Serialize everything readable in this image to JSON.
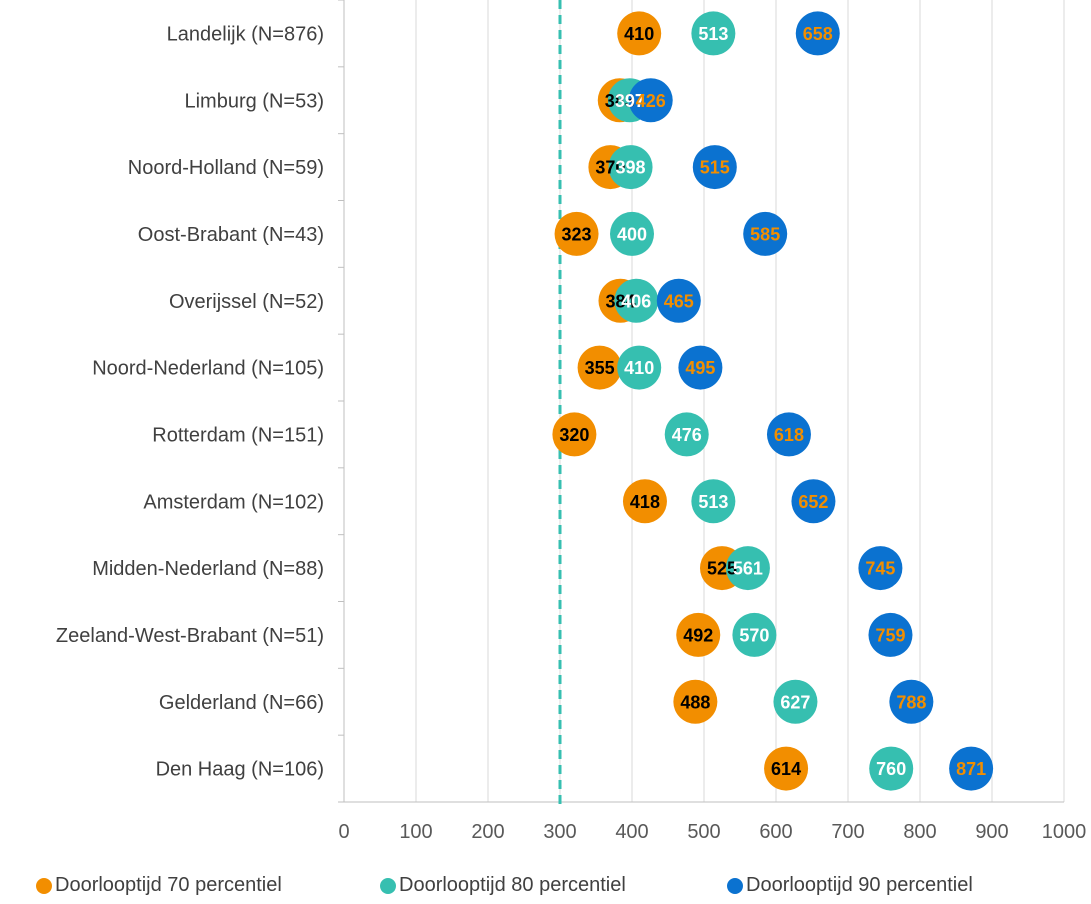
{
  "chart_data": {
    "type": "scatter",
    "categories": [
      "Landelijk (N=876)",
      "Limburg (N=53)",
      "Noord-Holland (N=59)",
      "Oost-Brabant (N=43)",
      "Overijssel (N=52)",
      "Noord-Nederland (N=105)",
      "Rotterdam (N=151)",
      "Amsterdam (N=102)",
      "Midden-Nederland (N=88)",
      "Zeeland-West-Brabant (N=51)",
      "Gelderland (N=66)",
      "Den Haag (N=106)"
    ],
    "series": [
      {
        "name": "Doorlooptijd 70 percentiel",
        "color": "#f28e00",
        "label_color": "#000000",
        "values": [
          410,
          383,
          370,
          323,
          384,
          355,
          320,
          418,
          525,
          492,
          488,
          614
        ]
      },
      {
        "name": "Doorlooptijd 80 percentiel",
        "color": "#36bfb0",
        "label_color": "#ffffff",
        "values": [
          513,
          397,
          398,
          400,
          406,
          410,
          476,
          513,
          561,
          570,
          627,
          760
        ]
      },
      {
        "name": "Doorlooptijd 90 percentiel",
        "color": "#0b72d0",
        "label_color": "#f28e00",
        "values": [
          658,
          426,
          515,
          585,
          465,
          495,
          618,
          652,
          745,
          759,
          788,
          871
        ]
      }
    ],
    "x_ticks": [
      0,
      100,
      200,
      300,
      400,
      500,
      600,
      700,
      800,
      900,
      1000
    ],
    "xlim": [
      0,
      1000
    ],
    "reference_line": {
      "x": 300,
      "color": "#36bfb0",
      "style": "dashed"
    },
    "grid": true,
    "legend_position": "bottom",
    "title": "",
    "xlabel": "",
    "ylabel": ""
  }
}
